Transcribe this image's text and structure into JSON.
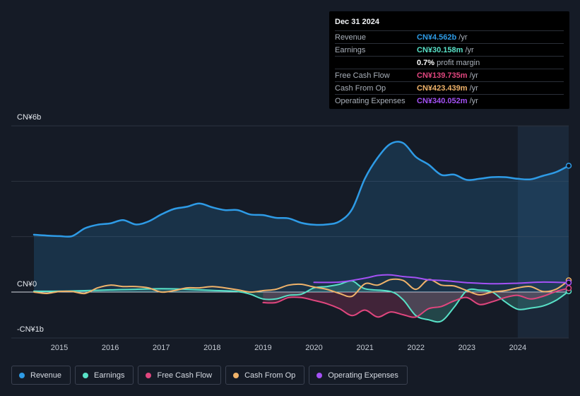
{
  "tooltip": {
    "date": "Dec 31 2024",
    "rows": [
      {
        "label": "Revenue",
        "value": "CN¥4.562b",
        "unit": "/yr",
        "color": "#2e9be6"
      },
      {
        "label": "Earnings",
        "value": "CN¥30.158m",
        "unit": "/yr",
        "color": "#58e1c7"
      },
      {
        "label": "",
        "value": "0.7%",
        "unit": "profit margin",
        "color": "#ffffff"
      },
      {
        "label": "Free Cash Flow",
        "value": "CN¥139.735m",
        "unit": "/yr",
        "color": "#e0467e"
      },
      {
        "label": "Cash From Op",
        "value": "CN¥423.439m",
        "unit": "/yr",
        "color": "#f0b36a"
      },
      {
        "label": "Operating Expenses",
        "value": "CN¥340.052m",
        "unit": "/yr",
        "color": "#a451f5"
      }
    ]
  },
  "axis": {
    "y_top": "CN¥6b",
    "y_zero": "CN¥0",
    "y_bottom": "-CN¥1b"
  },
  "legend": [
    {
      "label": "Revenue",
      "color": "#2e9be6"
    },
    {
      "label": "Earnings",
      "color": "#58e1c7"
    },
    {
      "label": "Free Cash Flow",
      "color": "#e0467e"
    },
    {
      "label": "Cash From Op",
      "color": "#f0b36a"
    },
    {
      "label": "Operating Expenses",
      "color": "#a451f5"
    }
  ],
  "chart_data": {
    "type": "line",
    "ylim": [
      -1.2,
      6
    ],
    "xlim": [
      2014.5,
      2025.0
    ],
    "x_ticks": [
      "2015",
      "2016",
      "2017",
      "2018",
      "2019",
      "2020",
      "2021",
      "2022",
      "2023",
      "2024"
    ],
    "highlight_from": 2024.0,
    "series": [
      {
        "name": "Revenue",
        "color": "#2e9be6",
        "fill": true,
        "points": [
          [
            2014.5,
            2.07
          ],
          [
            2014.75,
            2.04
          ],
          [
            2015.0,
            2.02
          ],
          [
            2015.25,
            2.02
          ],
          [
            2015.5,
            2.3
          ],
          [
            2015.75,
            2.43
          ],
          [
            2016.0,
            2.48
          ],
          [
            2016.25,
            2.6
          ],
          [
            2016.5,
            2.44
          ],
          [
            2016.75,
            2.55
          ],
          [
            2017.0,
            2.8
          ],
          [
            2017.25,
            3.0
          ],
          [
            2017.5,
            3.08
          ],
          [
            2017.75,
            3.2
          ],
          [
            2018.0,
            3.06
          ],
          [
            2018.25,
            2.96
          ],
          [
            2018.5,
            2.96
          ],
          [
            2018.75,
            2.8
          ],
          [
            2019.0,
            2.78
          ],
          [
            2019.25,
            2.68
          ],
          [
            2019.5,
            2.66
          ],
          [
            2019.75,
            2.5
          ],
          [
            2020.0,
            2.43
          ],
          [
            2020.25,
            2.44
          ],
          [
            2020.5,
            2.55
          ],
          [
            2020.75,
            3.0
          ],
          [
            2021.0,
            4.1
          ],
          [
            2021.25,
            4.85
          ],
          [
            2021.5,
            5.35
          ],
          [
            2021.75,
            5.38
          ],
          [
            2022.0,
            4.88
          ],
          [
            2022.25,
            4.6
          ],
          [
            2022.5,
            4.23
          ],
          [
            2022.75,
            4.24
          ],
          [
            2023.0,
            4.05
          ],
          [
            2023.25,
            4.09
          ],
          [
            2023.5,
            4.15
          ],
          [
            2023.75,
            4.15
          ],
          [
            2024.0,
            4.09
          ],
          [
            2024.25,
            4.07
          ],
          [
            2024.5,
            4.2
          ],
          [
            2024.75,
            4.33
          ],
          [
            2025.0,
            4.56
          ]
        ]
      },
      {
        "name": "Earnings",
        "color": "#58e1c7",
        "fill": true,
        "points": [
          [
            2014.5,
            0.03
          ],
          [
            2015.0,
            0.03
          ],
          [
            2015.5,
            0.05
          ],
          [
            2016.0,
            0.08
          ],
          [
            2016.5,
            0.1
          ],
          [
            2017.0,
            0.12
          ],
          [
            2017.5,
            0.1
          ],
          [
            2018.0,
            0.06
          ],
          [
            2018.5,
            0.02
          ],
          [
            2018.75,
            -0.08
          ],
          [
            2019.0,
            -0.25
          ],
          [
            2019.25,
            -0.25
          ],
          [
            2019.5,
            -0.12
          ],
          [
            2019.75,
            -0.08
          ],
          [
            2020.0,
            0.15
          ],
          [
            2020.25,
            0.2
          ],
          [
            2020.5,
            0.28
          ],
          [
            2020.75,
            0.4
          ],
          [
            2021.0,
            0.12
          ],
          [
            2021.5,
            0.02
          ],
          [
            2021.75,
            -0.28
          ],
          [
            2022.0,
            -0.85
          ],
          [
            2022.25,
            -1.0
          ],
          [
            2022.5,
            -1.05
          ],
          [
            2022.75,
            -0.55
          ],
          [
            2023.0,
            0.05
          ],
          [
            2023.25,
            0.07
          ],
          [
            2023.5,
            0.0
          ],
          [
            2023.75,
            -0.35
          ],
          [
            2024.0,
            -0.62
          ],
          [
            2024.25,
            -0.58
          ],
          [
            2024.5,
            -0.5
          ],
          [
            2024.75,
            -0.3
          ],
          [
            2025.0,
            0.03
          ]
        ]
      },
      {
        "name": "Free Cash Flow",
        "color": "#e0467e",
        "fill": true,
        "points": [
          [
            2019.0,
            -0.38
          ],
          [
            2019.25,
            -0.38
          ],
          [
            2019.5,
            -0.2
          ],
          [
            2019.75,
            -0.2
          ],
          [
            2020.0,
            -0.3
          ],
          [
            2020.25,
            -0.42
          ],
          [
            2020.5,
            -0.6
          ],
          [
            2020.75,
            -0.85
          ],
          [
            2021.0,
            -0.65
          ],
          [
            2021.25,
            -0.9
          ],
          [
            2021.5,
            -0.72
          ],
          [
            2021.75,
            -0.82
          ],
          [
            2022.0,
            -0.9
          ],
          [
            2022.25,
            -0.6
          ],
          [
            2022.5,
            -0.52
          ],
          [
            2022.75,
            -0.32
          ],
          [
            2023.0,
            -0.2
          ],
          [
            2023.25,
            -0.45
          ],
          [
            2023.5,
            -0.35
          ],
          [
            2023.75,
            -0.2
          ],
          [
            2024.0,
            -0.12
          ],
          [
            2024.25,
            -0.25
          ],
          [
            2024.5,
            -0.15
          ],
          [
            2024.75,
            0.02
          ],
          [
            2025.0,
            0.14
          ]
        ]
      },
      {
        "name": "Cash From Op",
        "color": "#f0b36a",
        "fill": false,
        "points": [
          [
            2014.5,
            0.0
          ],
          [
            2014.75,
            -0.05
          ],
          [
            2015.0,
            0.02
          ],
          [
            2015.25,
            0.02
          ],
          [
            2015.5,
            -0.05
          ],
          [
            2015.75,
            0.15
          ],
          [
            2016.0,
            0.25
          ],
          [
            2016.25,
            0.2
          ],
          [
            2016.5,
            0.2
          ],
          [
            2016.75,
            0.15
          ],
          [
            2017.0,
            0.0
          ],
          [
            2017.25,
            0.05
          ],
          [
            2017.5,
            0.15
          ],
          [
            2017.75,
            0.15
          ],
          [
            2018.0,
            0.2
          ],
          [
            2018.25,
            0.15
          ],
          [
            2018.5,
            0.08
          ],
          [
            2018.75,
            0.0
          ],
          [
            2019.0,
            0.05
          ],
          [
            2019.25,
            0.1
          ],
          [
            2019.5,
            0.25
          ],
          [
            2019.75,
            0.28
          ],
          [
            2020.0,
            0.18
          ],
          [
            2020.25,
            0.1
          ],
          [
            2020.5,
            -0.05
          ],
          [
            2020.75,
            -0.15
          ],
          [
            2021.0,
            0.3
          ],
          [
            2021.25,
            0.25
          ],
          [
            2021.5,
            0.45
          ],
          [
            2021.75,
            0.42
          ],
          [
            2022.0,
            0.1
          ],
          [
            2022.25,
            0.45
          ],
          [
            2022.5,
            0.25
          ],
          [
            2022.75,
            0.22
          ],
          [
            2023.0,
            0.05
          ],
          [
            2023.25,
            -0.1
          ],
          [
            2023.5,
            0.0
          ],
          [
            2023.75,
            0.05
          ],
          [
            2024.0,
            0.15
          ],
          [
            2024.25,
            0.2
          ],
          [
            2024.5,
            0.02
          ],
          [
            2024.75,
            0.1
          ],
          [
            2025.0,
            0.42
          ]
        ]
      },
      {
        "name": "Operating Expenses",
        "color": "#a451f5",
        "fill": false,
        "points": [
          [
            2020.0,
            0.35
          ],
          [
            2020.5,
            0.36
          ],
          [
            2021.0,
            0.5
          ],
          [
            2021.25,
            0.6
          ],
          [
            2021.5,
            0.62
          ],
          [
            2021.75,
            0.56
          ],
          [
            2022.0,
            0.52
          ],
          [
            2022.25,
            0.44
          ],
          [
            2022.5,
            0.42
          ],
          [
            2022.75,
            0.38
          ],
          [
            2023.0,
            0.34
          ],
          [
            2023.5,
            0.3
          ],
          [
            2024.0,
            0.32
          ],
          [
            2024.5,
            0.36
          ],
          [
            2025.0,
            0.34
          ]
        ]
      }
    ]
  }
}
